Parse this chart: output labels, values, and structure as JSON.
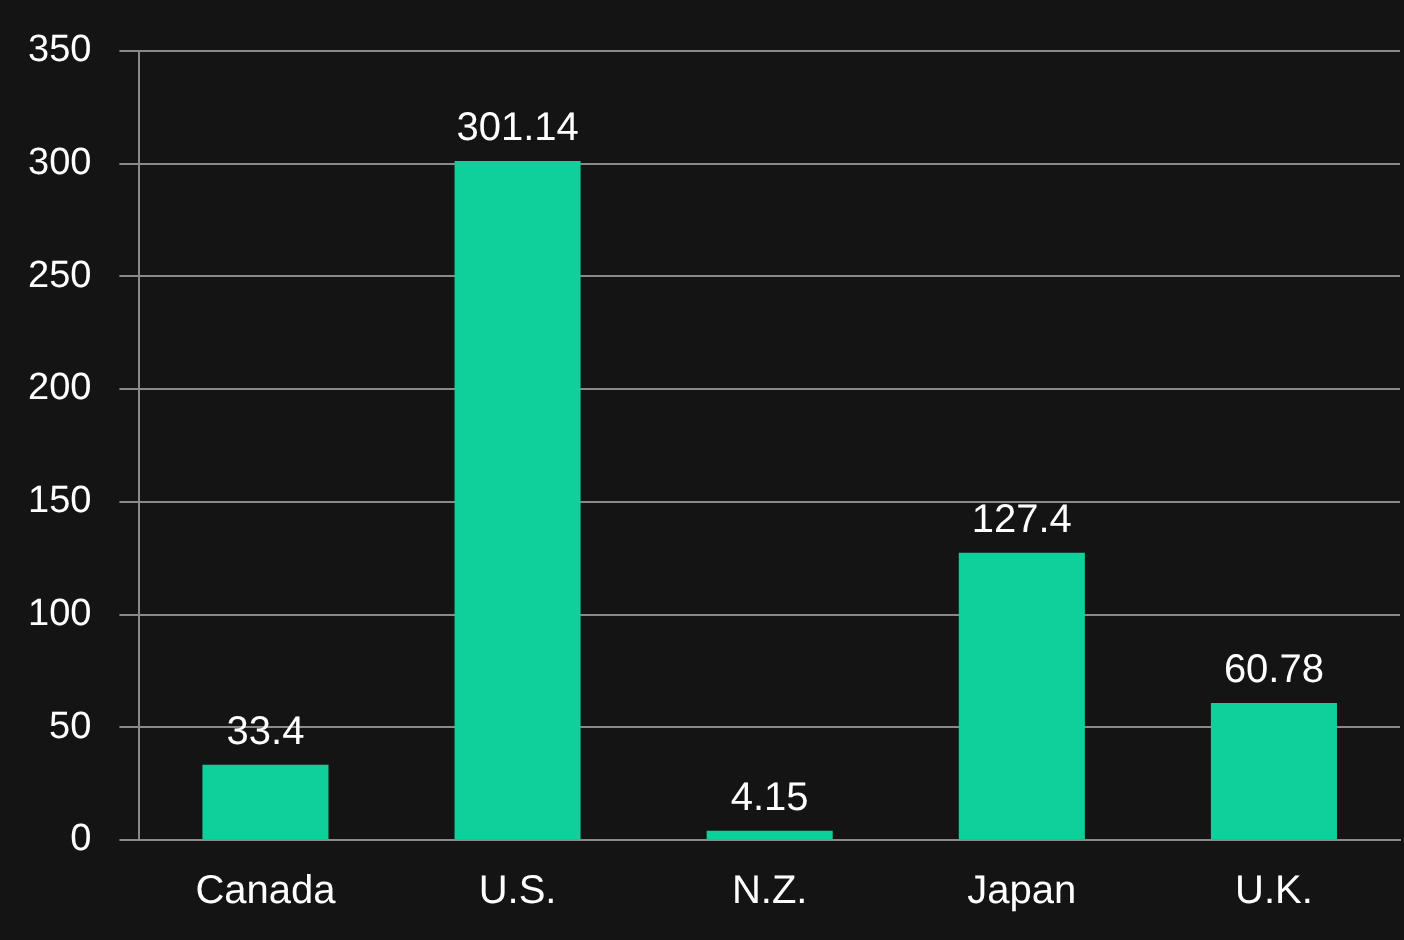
{
  "chart_data": {
    "type": "bar",
    "categories": [
      "Canada",
      "U.S.",
      "N.Z.",
      "Japan",
      "U.K."
    ],
    "values": [
      33.4,
      301.14,
      4.15,
      127.4,
      60.78
    ],
    "color": "#0fcf9a",
    "ylim": [
      0,
      350
    ],
    "yticks": [
      0,
      50,
      100,
      150,
      200,
      250,
      300,
      350
    ],
    "grid": "y",
    "data_labels": true,
    "legend": false
  }
}
